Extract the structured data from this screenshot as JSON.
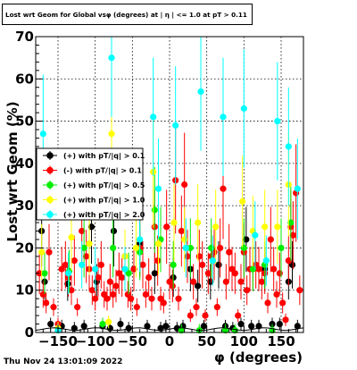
{
  "header": {
    "title": "Lost wrt Geom for Global vsφ (degrees) at | η | <= 1.0 at pT > 0.11"
  },
  "footer": {
    "datestamp": "Thu Nov 24 13:01:09 2022"
  },
  "chart_data": {
    "type": "scatter",
    "title": "Lost wrt Geom for Global vsφ (degrees) at | η | <= 1.0 at pT > 0.11",
    "xlabel": "φ (degrees)",
    "ylabel": "Lost wrt Geom (%)",
    "xlim": [
      -180,
      180
    ],
    "ylim": [
      0,
      70
    ],
    "xticks": [
      -150,
      -100,
      -50,
      0,
      50,
      100,
      150
    ],
    "xtick_labels": [
      "−150",
      "−100",
      "−50",
      "0",
      "50",
      "100",
      "150"
    ],
    "yticks": [
      0,
      10,
      20,
      30,
      40,
      50,
      60,
      70
    ],
    "ytick_labels": [
      "0",
      "10",
      "20",
      "30",
      "40",
      "50",
      "60",
      "70"
    ],
    "grid": true,
    "legend_position": "left, mid-height",
    "series": [
      {
        "name": "(+) with pT/|q| > 0.1",
        "color": "#000000",
        "x": [
          -172,
          -168,
          -160,
          -145,
          -137,
          -128,
          -115,
          -105,
          -98,
          -90,
          -80,
          -75,
          -66,
          -55,
          -48,
          -40,
          -30,
          -20,
          -12,
          -5,
          5,
          10,
          18,
          28,
          38,
          46,
          55,
          66,
          75,
          85,
          96,
          103,
          110,
          120,
          128,
          138,
          148,
          160,
          165,
          172
        ],
        "y": [
          24,
          12,
          2,
          1.5,
          11.5,
          1,
          1.5,
          25,
          12,
          1.5,
          1,
          24,
          2,
          1,
          15,
          21,
          1.5,
          14,
          1,
          1.5,
          13,
          1,
          1.5,
          15,
          11,
          1.5,
          12,
          16,
          1.5,
          1,
          2,
          22,
          1.5,
          1.5,
          15,
          2,
          2,
          12,
          16,
          1.5
        ]
      },
      {
        "name": "(-) with pT/|q| > 0.1",
        "color": "#ff0000",
        "x": [
          -175,
          -170,
          -166,
          -162,
          -156,
          -150,
          -145,
          -140,
          -136,
          -132,
          -128,
          -124,
          -118,
          -112,
          -108,
          -104,
          -100,
          -96,
          -92,
          -88,
          -84,
          -80,
          -76,
          -72,
          -68,
          -64,
          -60,
          -56,
          -52,
          -48,
          -44,
          -40,
          -36,
          -32,
          -28,
          -24,
          -20,
          -16,
          -12,
          -8,
          -4,
          0,
          4,
          8,
          12,
          16,
          20,
          24,
          28,
          32,
          36,
          40,
          44,
          48,
          52,
          56,
          60,
          64,
          68,
          72,
          76,
          80,
          84,
          88,
          92,
          96,
          100,
          104,
          108,
          112,
          116,
          120,
          124,
          128,
          132,
          136,
          140,
          144,
          148,
          152,
          156,
          160,
          163,
          166,
          170,
          175
        ],
        "y": [
          14,
          9,
          7,
          19,
          6,
          2,
          15,
          16,
          13,
          10,
          17,
          6,
          24,
          18,
          15,
          10,
          8,
          13,
          16,
          9,
          8,
          12,
          9,
          11,
          14,
          13,
          18,
          9,
          8,
          15,
          6,
          20,
          16,
          9,
          13,
          8,
          25,
          17,
          8,
          7,
          25,
          12,
          11,
          36,
          8,
          24,
          35,
          18,
          4,
          12,
          6,
          18,
          16,
          4,
          14,
          18,
          19,
          6,
          20,
          34,
          12,
          19,
          15,
          14,
          4,
          12,
          19,
          10,
          15,
          15,
          16,
          15,
          12,
          14,
          7,
          22,
          15,
          9,
          14,
          7,
          3,
          17,
          25,
          23,
          33,
          10
        ]
      },
      {
        "name": "(+) with pT/|q| > 0.5",
        "color": "#00ee00",
        "x": [
          -168,
          -150,
          -135,
          -115,
          -90,
          -76,
          -55,
          -40,
          -20,
          -12,
          5,
          16,
          28,
          40,
          56,
          75,
          88,
          100,
          112,
          128,
          138,
          150,
          163
        ],
        "y": [
          14,
          0.5,
          14.5,
          20,
          2,
          20,
          14,
          19,
          29,
          22,
          16,
          0.5,
          20,
          0.5,
          20,
          0.5,
          0.5,
          20,
          15,
          16,
          0.5,
          20,
          26
        ]
      },
      {
        "name": "(+) with pT/|q| > 1.0",
        "color": "#ffff00",
        "x": [
          -172,
          -150,
          -132,
          -108,
          -82,
          -78,
          -60,
          -45,
          -22,
          -15,
          6,
          20,
          38,
          62,
          98,
          112,
          128,
          145,
          160
        ],
        "y": [
          19,
          1,
          22.5,
          21,
          2.5,
          47,
          18,
          20,
          38,
          21,
          26,
          22,
          26,
          25,
          31,
          24,
          25,
          25,
          35
        ]
      },
      {
        "name": "(+) with pT/|q| > 2.0",
        "color": "#00ffff",
        "x": [
          -170,
          -150,
          -136,
          -118,
          -100,
          -78,
          -60,
          -40,
          -22,
          -15,
          8,
          22,
          42,
          58,
          72,
          100,
          115,
          130,
          145,
          160,
          172
        ],
        "y": [
          47,
          0.5,
          14,
          16,
          15,
          65,
          15,
          22,
          51,
          34,
          49,
          20,
          57,
          17,
          51,
          53,
          23,
          17,
          50,
          44,
          34
        ]
      }
    ]
  }
}
